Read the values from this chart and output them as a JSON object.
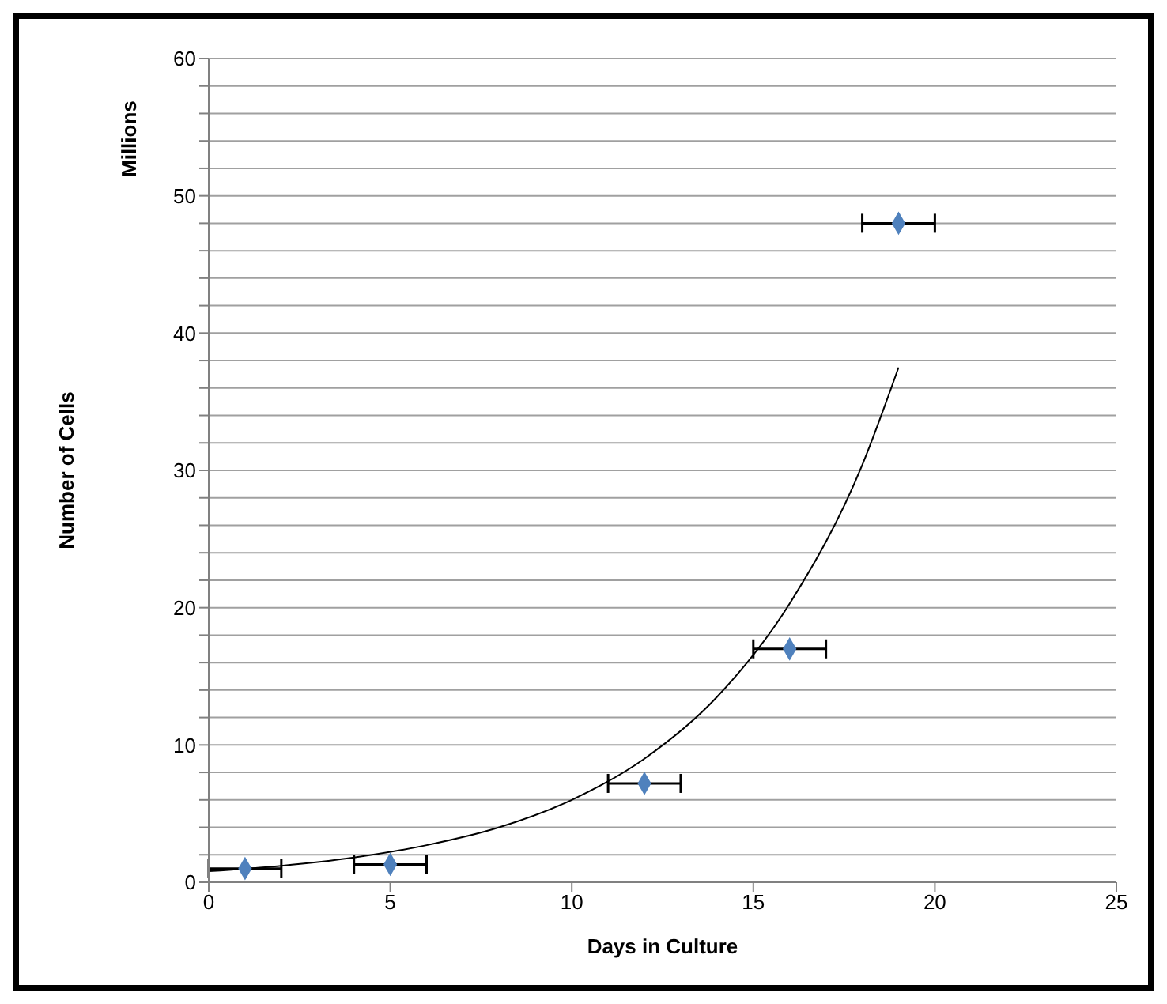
{
  "chart_data": {
    "type": "scatter",
    "xlabel": "Days in Culture",
    "ylabel": "Number of Cells",
    "annotations": [
      "Millions"
    ],
    "xlim": [
      0,
      25
    ],
    "xticks": [
      0,
      5,
      10,
      15,
      20,
      25
    ],
    "ylim": [
      0,
      60
    ],
    "yticks": [
      0,
      {
        "value": 2,
        "label": null
      },
      {
        "value": 4,
        "label": null
      },
      {
        "value": 6,
        "label": null
      },
      {
        "value": 8,
        "label": null
      },
      10,
      {
        "value": 12,
        "label": null
      },
      {
        "value": 14,
        "label": null
      },
      {
        "value": 16,
        "label": null
      },
      {
        "value": 18,
        "label": null
      },
      20,
      {
        "value": 22,
        "label": null
      },
      {
        "value": 24,
        "label": null
      },
      {
        "value": 26,
        "label": null
      },
      {
        "value": 28,
        "label": null
      },
      30,
      {
        "value": 32,
        "label": null
      },
      {
        "value": 34,
        "label": null
      },
      {
        "value": 36,
        "label": null
      },
      {
        "value": 38,
        "label": null
      },
      40,
      {
        "value": 42,
        "label": null
      },
      {
        "value": 44,
        "label": null
      },
      {
        "value": 46,
        "label": null
      },
      {
        "value": 48,
        "label": null
      },
      50,
      {
        "value": 52,
        "label": null
      },
      {
        "value": 54,
        "label": null
      },
      {
        "value": 56,
        "label": null
      },
      {
        "value": 58,
        "label": null
      },
      60
    ],
    "grid": "y",
    "legend": false,
    "series": [
      {
        "type": "scatter",
        "color": "#4f81bd",
        "marker": "diamond",
        "x": [
          1,
          5,
          12,
          16,
          19
        ],
        "values": [
          1,
          1.3,
          7.2,
          17,
          48
        ],
        "xerrors": [
          1,
          1,
          1,
          1,
          1
        ]
      },
      {
        "type": "line",
        "color": "#000000",
        "marker": "none",
        "line_style": "solid",
        "x": [
          0,
          2,
          4,
          6,
          8,
          10,
          12,
          14,
          16,
          18,
          19
        ],
        "values": [
          0.8,
          1.2,
          1.8,
          2.7,
          4,
          6,
          9,
          13.5,
          20.3,
          30.4,
          37.5
        ]
      }
    ]
  }
}
